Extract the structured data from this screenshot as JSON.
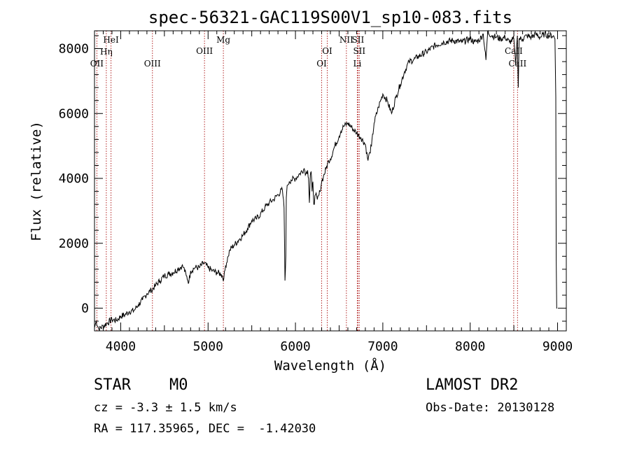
{
  "chart_data": {
    "type": "line",
    "title": "spec-56321-GAC119S00V1_sp10-083.fits",
    "xlabel": "Wavelength (Å)",
    "ylabel": "Flux (relative)",
    "xlim": [
      3700,
      9100
    ],
    "ylim": [
      -700,
      8550
    ],
    "xticks": [
      4000,
      5000,
      6000,
      7000,
      8000,
      9000
    ],
    "yticks": [
      0,
      2000,
      4000,
      6000,
      8000
    ],
    "grid": false,
    "series": [
      {
        "x": [
          3700,
          3720,
          3750,
          3800,
          3850,
          3900,
          3950,
          4000,
          4050,
          4100,
          4150,
          4200,
          4250,
          4300,
          4350,
          4400,
          4450,
          4500,
          4550,
          4600,
          4650,
          4700,
          4720,
          4750,
          4780,
          4800,
          4850,
          4900,
          4950,
          5000,
          5050,
          5100,
          5150,
          5180,
          5200,
          5230,
          5250,
          5300,
          5350,
          5400,
          5450,
          5500,
          5550,
          5600,
          5650,
          5700,
          5750,
          5800,
          5850,
          5870,
          5880,
          5890,
          5895,
          5900,
          5910,
          5930,
          5950,
          6000,
          6050,
          6100,
          6120,
          6140,
          6150,
          6160,
          6170,
          6180,
          6190,
          6200,
          6210,
          6230,
          6250,
          6270,
          6280,
          6300,
          6320,
          6350,
          6380,
          6400,
          6450,
          6500,
          6520,
          6550,
          6600,
          6650,
          6700,
          6750,
          6800,
          6830,
          6850,
          6870,
          6900,
          6950,
          7000,
          7050,
          7100,
          7150,
          7200,
          7250,
          7300,
          7350,
          7400,
          7500,
          7600,
          7700,
          7800,
          7900,
          8000,
          8050,
          8100,
          8150,
          8180,
          8200,
          8250,
          8300,
          8350,
          8400,
          8450,
          8500,
          8520,
          8540,
          8550,
          8560,
          8600,
          8650,
          8700,
          8750,
          8800,
          8850,
          8900,
          8950,
          8970,
          8980,
          8985,
          8990,
          8995
        ],
        "values": [
          -600,
          -400,
          -650,
          -550,
          -450,
          -350,
          -380,
          -250,
          -200,
          -100,
          -80,
          100,
          250,
          450,
          550,
          700,
          850,
          1000,
          1050,
          1100,
          1200,
          1300,
          1250,
          1000,
          800,
          1150,
          1250,
          1250,
          1400,
          1250,
          1150,
          1100,
          1050,
          900,
          1300,
          1600,
          1800,
          1950,
          2100,
          2250,
          2450,
          2700,
          2750,
          2900,
          3100,
          3250,
          3350,
          3500,
          3650,
          3100,
          850,
          1600,
          3400,
          3600,
          3800,
          3900,
          3950,
          4000,
          4150,
          4300,
          4150,
          4250,
          4000,
          3250,
          4100,
          4200,
          3600,
          3900,
          3200,
          3500,
          3350,
          3500,
          3600,
          3900,
          4050,
          4300,
          4550,
          4600,
          5000,
          5300,
          5450,
          5600,
          5700,
          5550,
          5400,
          5250,
          5050,
          4550,
          4800,
          5000,
          5700,
          6200,
          6600,
          6400,
          6000,
          6500,
          6900,
          7300,
          7600,
          7650,
          7750,
          7900,
          8100,
          8200,
          8250,
          8200,
          8300,
          8200,
          8250,
          8450,
          7650,
          8500,
          8400,
          8350,
          8300,
          8350,
          8200,
          8300,
          7500,
          8400,
          6800,
          8300,
          8300,
          8400,
          8350,
          8450,
          8350,
          8450,
          8400,
          8400,
          8300,
          6500,
          1500,
          0,
          0
        ]
      }
    ],
    "line_markers": [
      {
        "x": 3727,
        "label": "OII"
      },
      {
        "x": 3835,
        "label": "Hη"
      },
      {
        "x": 3889,
        "label": "HeI"
      },
      {
        "x": 4363,
        "label": "OIII"
      },
      {
        "x": 4959,
        "label": "OIII"
      },
      {
        "x": 5175,
        "label": "Mg"
      },
      {
        "x": 6300,
        "label": "OI"
      },
      {
        "x": 6364,
        "label": "OI"
      },
      {
        "x": 6583,
        "label": "NII"
      },
      {
        "x": 6716,
        "label": "SII"
      },
      {
        "x": 6731,
        "label": "SII"
      },
      {
        "x": 6708,
        "label": "Li"
      },
      {
        "x": 8498,
        "label": "CaII"
      },
      {
        "x": 8542,
        "label": "CaII"
      }
    ]
  },
  "info": {
    "class_label": "STAR",
    "subclass": "M0",
    "survey": "LAMOST DR2",
    "redshift": "cz = -3.3 ± 1.5 km/s",
    "obs_date": "Obs-Date: 20130128",
    "coords": "RA = 117.35965, DEC =  -1.42030"
  },
  "colors": {
    "spectrum": "#000000",
    "marker": "#b22222",
    "axis": "#000000"
  }
}
